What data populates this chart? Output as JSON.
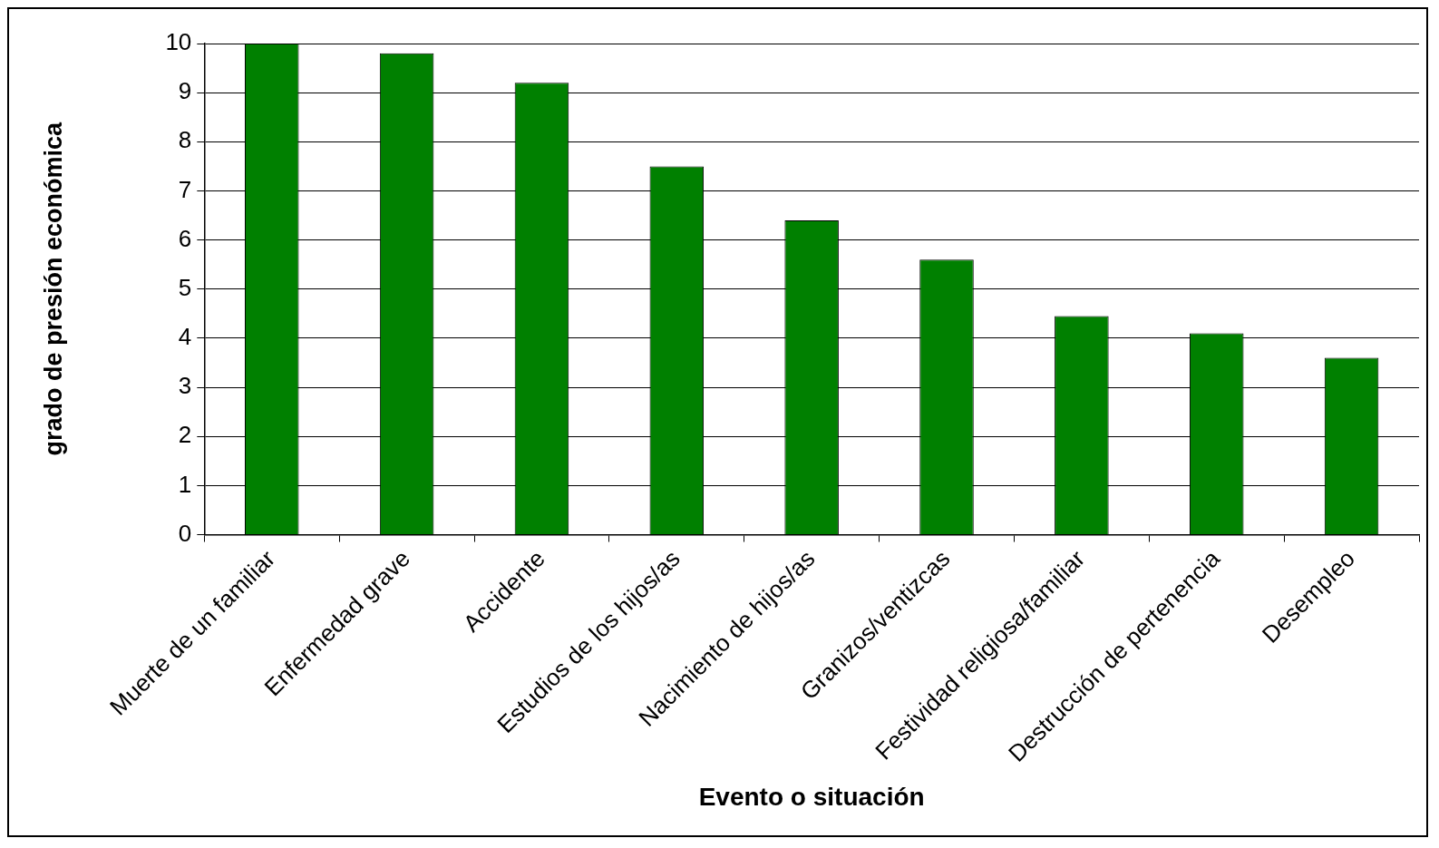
{
  "chart_data": {
    "type": "bar",
    "xlabel": "Evento o situación",
    "ylabel": "grado de presión económica",
    "categories": [
      "Muerte de un familiar",
      "Enfermedad grave",
      "Accidente",
      "Estudios de los hijos/as",
      "Nacimiento de hijos/as",
      "Granizos/ventizcas",
      "Festividad religiosa/familiar",
      "Destrucción de pertenencia",
      "Desempleo"
    ],
    "values": [
      10,
      9.8,
      9.2,
      7.5,
      6.4,
      5.6,
      4.45,
      4.1,
      3.6
    ],
    "color": "#008000",
    "ylim": [
      0,
      10
    ],
    "yticks": [
      0,
      1,
      2,
      3,
      4,
      5,
      6,
      7,
      8,
      9,
      10
    ],
    "grid": "y",
    "legend": false
  }
}
